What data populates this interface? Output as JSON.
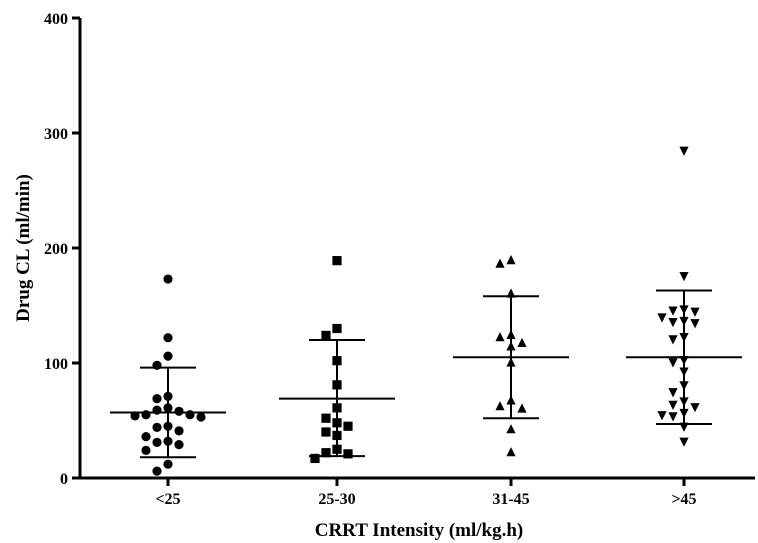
{
  "chart_data": {
    "type": "scatter",
    "title": "",
    "xlabel": "CRRT Intensity (ml/kg.h)",
    "ylabel": "Drug CL (ml/min)",
    "ylim": [
      0,
      400
    ],
    "yticks": [
      0,
      100,
      200,
      300,
      400
    ],
    "categories": [
      "<25",
      "25-30",
      "31-45",
      ">45"
    ],
    "grid": false,
    "groups": [
      {
        "category": "<25",
        "marker": "circle",
        "mean": 57,
        "sd_low": 18,
        "sd_high": 96,
        "points": [
          173,
          122,
          106,
          98,
          71,
          69,
          61,
          59,
          58,
          55,
          55,
          54,
          53,
          45,
          44,
          41,
          36,
          32,
          31,
          29,
          24,
          12,
          6
        ]
      },
      {
        "category": "25-30",
        "marker": "square",
        "mean": 69,
        "sd_low": 19,
        "sd_high": 120,
        "points": [
          189,
          130,
          124,
          102,
          81,
          61,
          52,
          48,
          45,
          40,
          37,
          25,
          22,
          21,
          17
        ]
      },
      {
        "category": "31-45",
        "marker": "triangle-up",
        "mean": 105,
        "sd_low": 52,
        "sd_high": 158,
        "points": [
          189,
          186,
          160,
          124,
          122,
          117,
          114,
          100,
          67,
          62,
          60,
          42,
          22
        ]
      },
      {
        "category": ">45",
        "marker": "triangle-down",
        "mean": 105,
        "sd_low": 47,
        "sd_high": 163,
        "points": [
          285,
          176,
          147,
          146,
          145,
          140,
          137,
          136,
          135,
          123,
          121,
          103,
          101,
          93,
          81,
          75,
          67,
          64,
          62,
          57,
          55,
          54,
          45,
          32
        ]
      }
    ]
  }
}
